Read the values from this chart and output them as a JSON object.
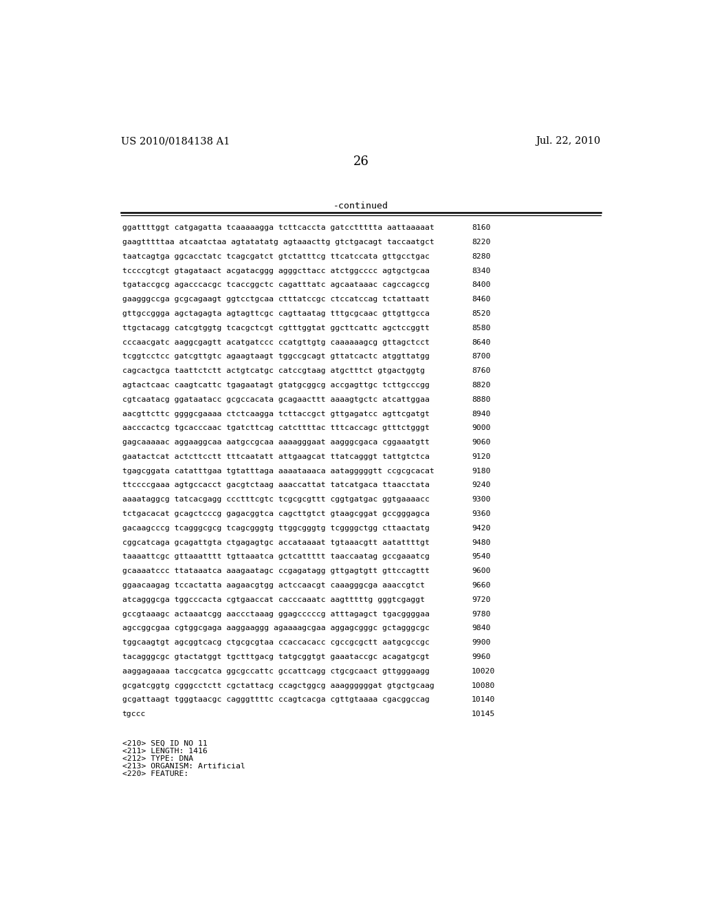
{
  "header_left": "US 2010/0184138 A1",
  "header_right": "Jul. 22, 2010",
  "page_number": "26",
  "continued_label": "-continued",
  "background_color": "#ffffff",
  "text_color": "#000000",
  "sequence_lines": [
    [
      "ggattttggt catgagatta tcaaaaagga tcttcaccta gatccttttta aattaaaaat",
      "8160"
    ],
    [
      "gaagtttttaa atcaatctaa agtatatatg agtaaacttg gtctgacagt taccaatgct",
      "8220"
    ],
    [
      "taatcagtga ggcacctatc tcagcgatct gtctatttcg ttcatccata gttgcctgac",
      "8280"
    ],
    [
      "tccccgtcgt gtagataact acgatacggg agggcttacc atctggcccc agtgctgcaa",
      "8340"
    ],
    [
      "tgataccgcg agacccacgc tcaccggctc cagatttatc agcaataaac cagccagccg",
      "8400"
    ],
    [
      "gaagggccga gcgcagaagt ggtcctgcaa ctttatccgc ctccatccag tctattaatt",
      "8460"
    ],
    [
      "gttgccggga agctagagta agtagttcgc cagttaatag tttgcgcaac gttgttgcca",
      "8520"
    ],
    [
      "ttgctacagg catcgtggtg tcacgctcgt cgtttggtat ggcttcattc agctccggtt",
      "8580"
    ],
    [
      "cccaacgatc aaggcgagtt acatgatccc ccatgttgtg caaaaaagcg gttagctcct",
      "8640"
    ],
    [
      "tcggtcctcc gatcgttgtc agaagtaagt tggccgcagt gttatcactc atggttatgg",
      "8700"
    ],
    [
      "cagcactgca taattctctt actgtcatgc catccgtaag atgctttct gtgactggtg",
      "8760"
    ],
    [
      "agtactcaac caagtcattc tgagaatagt gtatgcggcg accgagttgc tcttgcccgg",
      "8820"
    ],
    [
      "cgtcaatacg ggataatacc gcgccacata gcagaacttt aaaagtgctc atcattggaa",
      "8880"
    ],
    [
      "aacgttcttc ggggcgaaaa ctctcaagga tcttaccgct gttgagatcc agttcgatgt",
      "8940"
    ],
    [
      "aacccactcg tgcacccaac tgatcttcag catcttttac tttcaccagc gtttctgggt",
      "9000"
    ],
    [
      "gagcaaaaac aggaaggcaa aatgccgcaa aaaagggaat aagggcgaca cggaaatgtt",
      "9060"
    ],
    [
      "gaatactcat actcttcctt tttcaatatt attgaagcat ttatcagggt tattgtctca",
      "9120"
    ],
    [
      "tgagcggata catatttgaa tgtatttaga aaaataaaca aatagggggtt ccgcgcacat",
      "9180"
    ],
    [
      "ttccccgaaa agtgccacct gacgtctaag aaaccattat tatcatgaca ttaacctata",
      "9240"
    ],
    [
      "aaaataggcg tatcacgagg ccctttcgtc tcgcgcgttt cggtgatgac ggtgaaaacc",
      "9300"
    ],
    [
      "tctgacacat gcagctcccg gagacggtca cagcttgtct gtaagcggat gccgggagca",
      "9360"
    ],
    [
      "gacaagcccg tcagggcgcg tcagcgggtg ttggcgggtg tcggggctgg cttaactatg",
      "9420"
    ],
    [
      "cggcatcaga gcagattgta ctgagagtgc accataaaat tgtaaacgtt aatattttgt",
      "9480"
    ],
    [
      "taaaattcgc gttaaatttt tgttaaatca gctcattttt taaccaatag gccgaaatcg",
      "9540"
    ],
    [
      "gcaaaatccc ttataaatca aaagaatagc ccgagatagg gttgagtgtt gttccagttt",
      "9600"
    ],
    [
      "ggaacaagag tccactatta aagaacgtgg actccaacgt caaagggcga aaaccgtct",
      "9660"
    ],
    [
      "atcagggcga tggcccacta cgtgaaccat cacccaaatc aagtttttg gggtcgaggt",
      "9720"
    ],
    [
      "gccgtaaagc actaaatcgg aaccctaaag ggagcccccg atttagagct tgacggggaa",
      "9780"
    ],
    [
      "agccggcgaa cgtggcgaga aaggaaggg agaaaagcgaa aggagcgggc gctagggcgc",
      "9840"
    ],
    [
      "tggcaagtgt agcggtcacg ctgcgcgtaa ccaccacacc cgccgcgctt aatgcgccgc",
      "9900"
    ],
    [
      "tacagggcgc gtactatggt tgctttgacg tatgcggtgt gaaataccgc acagatgcgt",
      "9960"
    ],
    [
      "aaggagaaaa taccgcatca ggcgccattc gccattcagg ctgcgcaact gttgggaagg",
      "10020"
    ],
    [
      "gcgatcggtg cgggcctctt cgctattacg ccagctggcg aaaggggggat gtgctgcaag",
      "10080"
    ],
    [
      "gcgattaagt tgggtaacgc cagggttttc ccagtcacga cgttgtaaaa cgacggccag",
      "10140"
    ],
    [
      "tgccc",
      "10145"
    ]
  ],
  "footer_lines": [
    "<210> SEQ ID NO 11",
    "<211> LENGTH: 1416",
    "<212> TYPE: DNA",
    "<213> ORGANISM: Artificial",
    "<220> FEATURE:"
  ],
  "header_fontsize": 10.5,
  "page_num_fontsize": 13,
  "continued_fontsize": 9.5,
  "body_fontsize": 8.2,
  "footer_fontsize": 8.2
}
